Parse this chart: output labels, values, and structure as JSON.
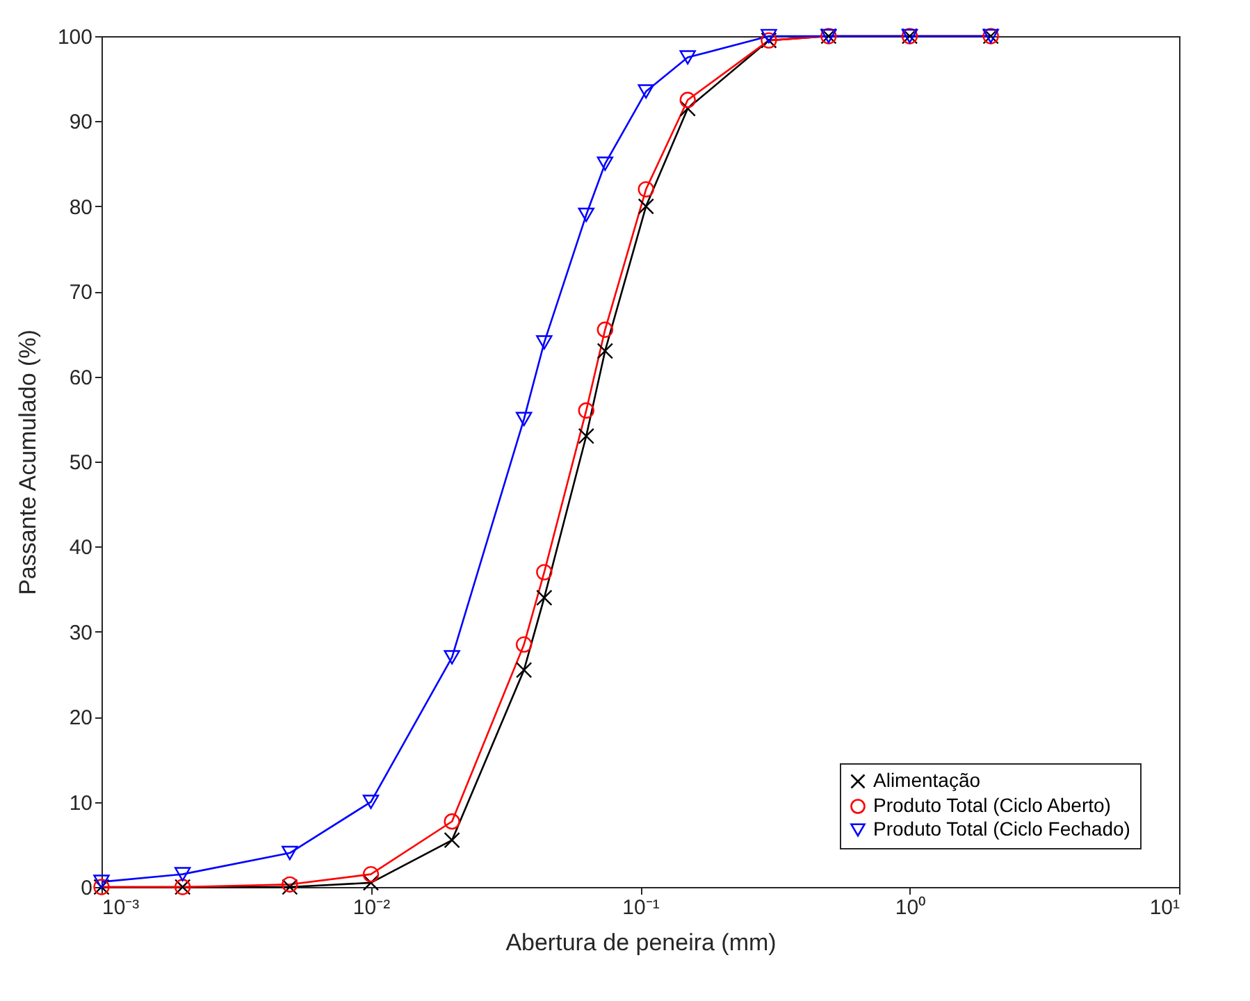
{
  "chart_data": {
    "type": "line",
    "xlabel": "Abertura de peneira (mm)",
    "ylabel": "Passante Acumulado (%)",
    "x": [
      0.001,
      0.002,
      0.005,
      0.01,
      0.02,
      0.037,
      0.044,
      0.063,
      0.074,
      0.105,
      0.15,
      0.3,
      0.5,
      1,
      2
    ],
    "series": [
      {
        "name": "Alimentação",
        "color": "#000000",
        "marker": "cross",
        "values": [
          0,
          0,
          0,
          0.5,
          5.5,
          25.5,
          34,
          53,
          63,
          80,
          91.5,
          99.5,
          100,
          100,
          100
        ]
      },
      {
        "name": "Produto Total (Ciclo Aberto)",
        "color": "#ff0000",
        "marker": "circle",
        "values": [
          0,
          0,
          0.3,
          1.5,
          7.7,
          28.5,
          37,
          56,
          65.5,
          82,
          92.5,
          99.5,
          100,
          100,
          100
        ]
      },
      {
        "name": "Produto Total (Ciclo Fechado)",
        "color": "#0000ff",
        "marker": "triangle",
        "values": [
          0.6,
          1.5,
          4,
          10,
          27,
          55,
          64,
          79,
          85,
          93.5,
          97.5,
          100,
          100,
          100,
          100
        ]
      }
    ],
    "log": "x",
    "xlim": [
      0.001,
      10
    ],
    "xticks": [
      {
        "value": 0.001,
        "label": "10⁻³"
      },
      {
        "value": 0.01,
        "label": "10⁻²"
      },
      {
        "value": 0.1,
        "label": "10⁻¹"
      },
      {
        "value": 1,
        "label": "10⁰"
      },
      {
        "value": 10,
        "label": "10¹"
      }
    ],
    "ylim": [
      0,
      100
    ],
    "yticks": [
      0,
      10,
      20,
      30,
      40,
      50,
      60,
      70,
      80,
      90,
      100
    ],
    "legend": "bottom right",
    "grid": false,
    "line_style": "solid"
  }
}
